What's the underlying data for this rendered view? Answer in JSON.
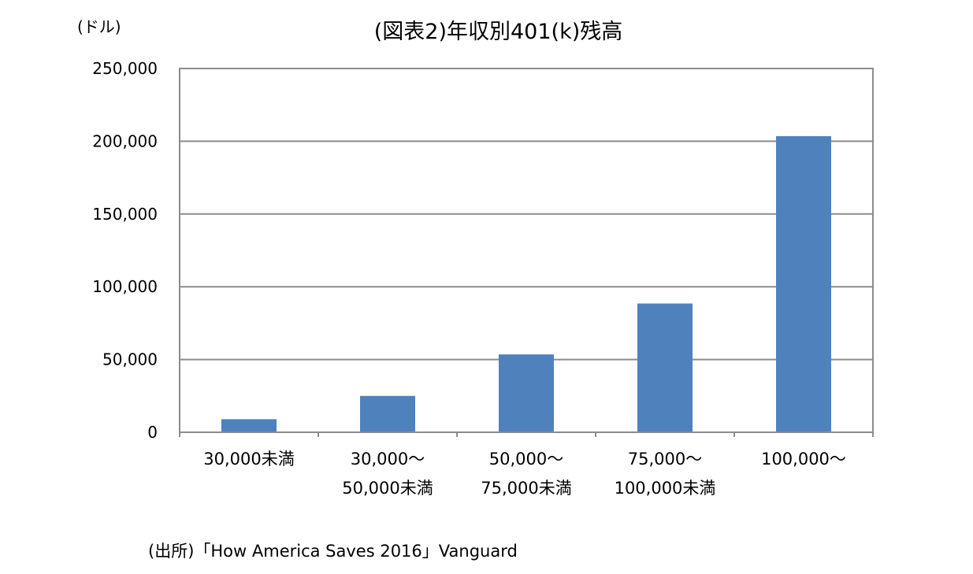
{
  "chart_data": {
    "type": "bar",
    "title": "(図表2)年収別401(k)残高",
    "unit_label": "(ドル)",
    "categories": [
      [
        "30,000未満"
      ],
      [
        "30,000～",
        "50,000未満"
      ],
      [
        "50,000～",
        "75,000未満"
      ],
      [
        "75,000～",
        "100,000未満"
      ],
      [
        "100,000～"
      ]
    ],
    "values": [
      9000,
      25000,
      53500,
      88500,
      203500
    ],
    "ylim": [
      0,
      250000
    ],
    "yticks": [
      0,
      50000,
      100000,
      150000,
      200000,
      250000
    ],
    "ytick_labels": [
      "0",
      "50,000",
      "100,000",
      "150,000",
      "200,000",
      "250,000"
    ],
    "grid": true,
    "legend": "none",
    "bar_color": "#4F81BD"
  },
  "source": "(出所)「How America Saves 2016」Vanguard"
}
